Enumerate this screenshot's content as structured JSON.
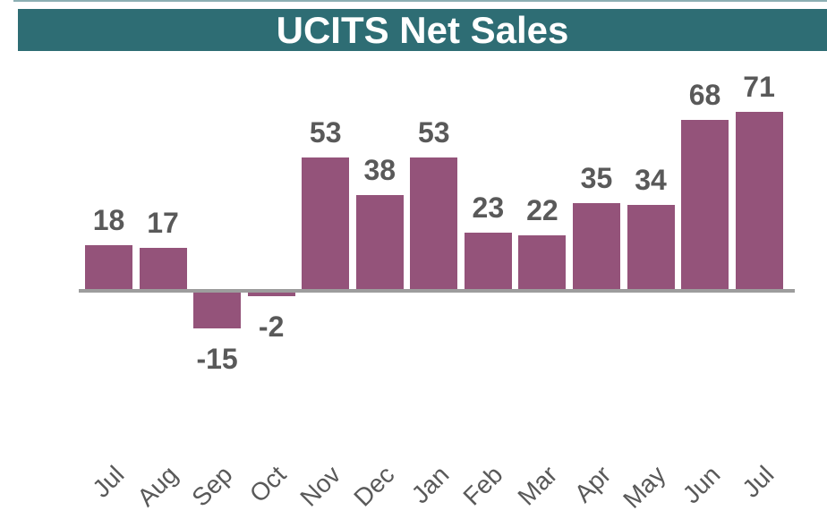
{
  "header": {
    "title": "UCITS Net Sales"
  },
  "chart_data": {
    "type": "bar",
    "title": "UCITS Net Sales",
    "categories": [
      "Jul",
      "Aug",
      "Sep",
      "Oct",
      "Nov",
      "Dec",
      "Jan",
      "Feb",
      "Mar",
      "Apr",
      "May",
      "Jun",
      "Jul"
    ],
    "values": [
      18,
      17,
      -15,
      -2,
      53,
      38,
      53,
      23,
      22,
      35,
      34,
      68,
      71
    ],
    "xlabel": "",
    "ylabel": "",
    "grid": false,
    "legend": "none",
    "data_labels_visible": true,
    "tick_label_rotation_deg": 45,
    "colors": {
      "bar": "#94537A",
      "header_bg": "#2E6D74",
      "title_text": "#FFFFFF",
      "data_label": "#595959",
      "tick_label": "#595959",
      "axis_line": "#9D9D9D",
      "background": "#FFFFFF"
    }
  }
}
